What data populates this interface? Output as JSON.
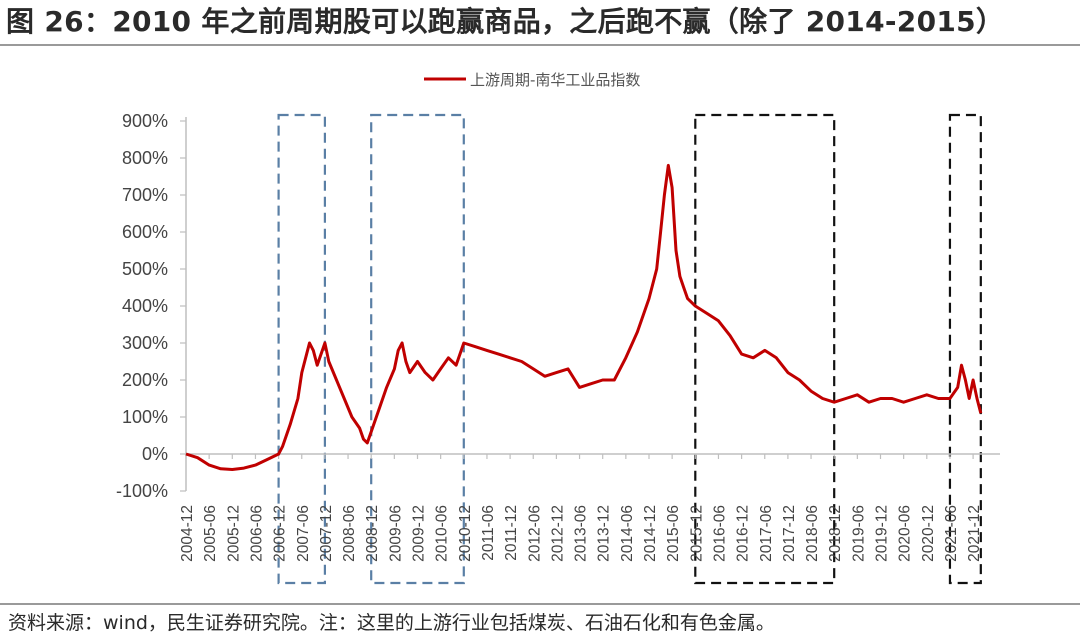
{
  "figure": {
    "title": "图 26：2010 年之前周期股可以跑赢商品，之后跑不赢（除了 2014-2015）",
    "source": "资料来源：wind，民生证券研究院。注：这里的上游行业包括煤炭、石油石化和有色金属。"
  },
  "colors": {
    "series": "#c00000",
    "box_blue": "#5a7fa5",
    "box_black": "#111111",
    "axis": "#bfbfbf",
    "text": "#444444"
  },
  "chart_data": {
    "type": "line",
    "title": "",
    "xlabel": "",
    "ylabel": "",
    "legend_position": "top-center",
    "grid": false,
    "ylim": [
      -100,
      900
    ],
    "yticks": [
      -100,
      0,
      100,
      200,
      300,
      400,
      500,
      600,
      700,
      800,
      900
    ],
    "ytick_labels": [
      "-100%",
      "0%",
      "100%",
      "200%",
      "300%",
      "400%",
      "500%",
      "600%",
      "700%",
      "800%",
      "900%"
    ],
    "xtick_labels": [
      "2004-12",
      "2005-06",
      "2005-12",
      "2006-06",
      "2006-12",
      "2007-06",
      "2007-12",
      "2008-06",
      "2008-12",
      "2009-06",
      "2009-12",
      "2010-06",
      "2010-12",
      "2011-06",
      "2011-12",
      "2012-06",
      "2012-12",
      "2013-06",
      "2013-12",
      "2014-06",
      "2014-12",
      "2015-06",
      "2015-12",
      "2016-06",
      "2016-12",
      "2017-06",
      "2017-12",
      "2018-06",
      "2018-12",
      "2019-06",
      "2019-12",
      "2020-06",
      "2020-12",
      "2021-06",
      "2021-12"
    ],
    "series": [
      {
        "name": "上游周期-南华工业品指数",
        "color": "#c00000",
        "x": [
          "2004-12",
          "2005-03",
          "2005-06",
          "2005-09",
          "2005-12",
          "2006-03",
          "2006-06",
          "2006-09",
          "2006-12",
          "2007-01",
          "2007-03",
          "2007-05",
          "2007-06",
          "2007-08",
          "2007-09",
          "2007-10",
          "2007-12",
          "2008-01",
          "2008-03",
          "2008-05",
          "2008-07",
          "2008-09",
          "2008-10",
          "2008-11",
          "2008-12",
          "2009-02",
          "2009-04",
          "2009-06",
          "2009-07",
          "2009-08",
          "2009-09",
          "2009-10",
          "2009-12",
          "2010-02",
          "2010-04",
          "2010-06",
          "2010-08",
          "2010-10",
          "2010-12",
          "2011-03",
          "2011-06",
          "2011-09",
          "2011-12",
          "2012-03",
          "2012-06",
          "2012-09",
          "2012-12",
          "2013-03",
          "2013-06",
          "2013-09",
          "2013-12",
          "2014-03",
          "2014-06",
          "2014-09",
          "2014-12",
          "2015-02",
          "2015-03",
          "2015-04",
          "2015-05",
          "2015-06",
          "2015-07",
          "2015-08",
          "2015-09",
          "2015-10",
          "2015-12",
          "2016-03",
          "2016-06",
          "2016-09",
          "2016-12",
          "2017-03",
          "2017-06",
          "2017-09",
          "2017-12",
          "2018-03",
          "2018-06",
          "2018-09",
          "2018-12",
          "2019-03",
          "2019-06",
          "2019-09",
          "2019-12",
          "2020-03",
          "2020-06",
          "2020-09",
          "2020-12",
          "2021-03",
          "2021-06",
          "2021-08",
          "2021-09",
          "2021-10",
          "2021-11",
          "2021-12",
          "2022-01",
          "2022-02"
        ],
        "values": [
          0,
          -10,
          -30,
          -40,
          -42,
          -38,
          -30,
          -15,
          0,
          20,
          80,
          150,
          220,
          300,
          280,
          240,
          300,
          250,
          200,
          150,
          100,
          70,
          40,
          30,
          60,
          120,
          180,
          230,
          280,
          300,
          250,
          220,
          250,
          220,
          200,
          230,
          260,
          240,
          300,
          290,
          280,
          270,
          260,
          250,
          230,
          210,
          220,
          230,
          180,
          190,
          200,
          200,
          260,
          330,
          420,
          500,
          600,
          700,
          780,
          720,
          550,
          480,
          450,
          420,
          400,
          380,
          360,
          320,
          270,
          260,
          280,
          260,
          220,
          200,
          170,
          150,
          140,
          150,
          160,
          140,
          150,
          150,
          140,
          150,
          160,
          150,
          150,
          180,
          240,
          200,
          150,
          200,
          150,
          110
        ]
      }
    ],
    "annotation_boxes": [
      {
        "color": "blue",
        "x_start": "2006-12",
        "x_end": "2007-12"
      },
      {
        "color": "blue",
        "x_start": "2008-12",
        "x_end": "2010-12"
      },
      {
        "color": "black",
        "x_start": "2015-12",
        "x_end": "2018-12"
      },
      {
        "color": "black",
        "x_start": "2021-06",
        "x_end": "2022-02"
      }
    ]
  }
}
